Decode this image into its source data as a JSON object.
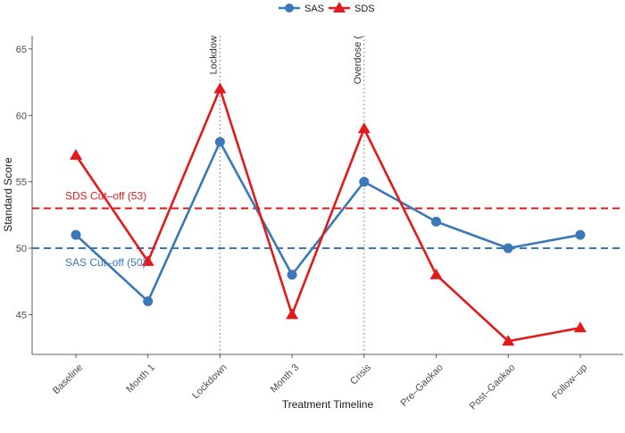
{
  "chart_data": {
    "type": "line",
    "categories": [
      "Baseline",
      "Month 1",
      "Lockdown",
      "Month 3",
      "Crisis",
      "Pre–Gaokao",
      "Post–Gaokao",
      "Follow–up"
    ],
    "series": [
      {
        "name": "SAS",
        "values": [
          51,
          46,
          58,
          48,
          55,
          52,
          50,
          51
        ],
        "color": "#3a78b8",
        "marker": "circle"
      },
      {
        "name": "SDS",
        "values": [
          57,
          49,
          62,
          45,
          59,
          48,
          43,
          44
        ],
        "color": "#e31a1c",
        "marker": "triangle"
      }
    ],
    "xlabel": "Treatment Timeline",
    "ylabel": "Standard Score",
    "ylim": [
      42,
      66
    ],
    "yticks": [
      45,
      50,
      55,
      60,
      65
    ],
    "grid": false,
    "legend_position": "top",
    "reference_lines": [
      {
        "label": "SDS Cut–off (53)",
        "value": 53,
        "color": "#e31a1c",
        "style": "dashed"
      },
      {
        "label": "SAS Cut–off (50)",
        "value": 50,
        "color": "#3a78b8",
        "style": "dashed"
      }
    ],
    "event_lines": [
      {
        "label": "Lockdow",
        "category_index": 2
      },
      {
        "label": "Overdose (",
        "category_index": 4
      }
    ]
  }
}
